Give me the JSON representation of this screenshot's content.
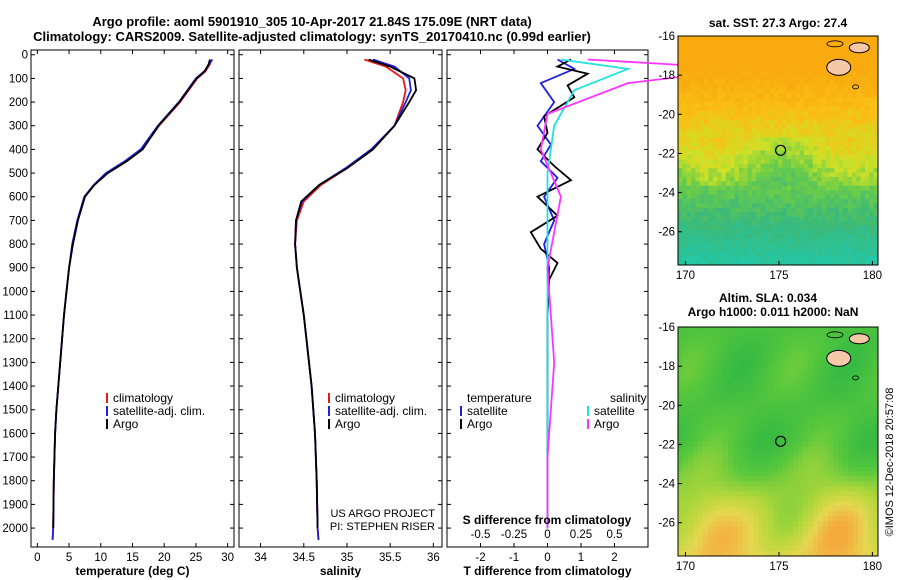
{
  "header": {
    "line1": "Argo profile: aoml 5901910_305 10-Apr-2017 21.84S 175.09E (NRT data)",
    "line2": "Climatology: CARS2009. Satellite-adjusted climatology: synTS_20170410.nc (0.99d earlier)"
  },
  "colors": {
    "climatology": "#e41a1c",
    "satellite_adj": "#1f1fe0",
    "argo": "#000000",
    "sat_salinity": "#22e0e0",
    "argo_salinity": "#ff33ff",
    "land": "#f5c8a8"
  },
  "chart_data": [
    {
      "type": "line",
      "xlabel": "temperature (deg C)",
      "ylabel": "",
      "xlim": [
        -1,
        31
      ],
      "ylim": [
        2080,
        -20
      ],
      "xticks": [
        "0",
        "5",
        "10",
        "15",
        "20",
        "25",
        "30"
      ],
      "yticks": [
        "0",
        "100",
        "200",
        "300",
        "400",
        "500",
        "600",
        "700",
        "800",
        "900",
        "1000",
        "1100",
        "1200",
        "1300",
        "1400",
        "1500",
        "1600",
        "1700",
        "1800",
        "1900",
        "2000"
      ],
      "legend": [
        "climatology",
        "satellite-adj. clim.",
        "Argo"
      ],
      "series": [
        {
          "name": "climatology",
          "x": [
            27.3,
            27.2,
            26.5,
            25.2,
            22.5,
            19.2,
            16.5,
            14.0,
            11.0,
            9.0,
            7.5,
            6.4,
            5.6,
            5.0,
            4.6,
            4.2,
            3.9,
            3.6,
            3.3,
            3.0,
            2.8,
            2.6,
            2.5,
            2.4
          ],
          "y": [
            20,
            40,
            70,
            100,
            200,
            300,
            400,
            450,
            500,
            550,
            600,
            700,
            800,
            900,
            1000,
            1100,
            1200,
            1300,
            1400,
            1500,
            1600,
            1800,
            2000,
            2050
          ]
        },
        {
          "name": "satellite-adj. clim.",
          "x": [
            27.6,
            27.1,
            26.3,
            25.0,
            22.3,
            19.0,
            16.3,
            13.8,
            10.8,
            8.9,
            7.4,
            6.3,
            5.5,
            5.0,
            4.6,
            4.2,
            3.9,
            3.6,
            3.3,
            3.0,
            2.8,
            2.6,
            2.5,
            2.4
          ],
          "y": [
            20,
            40,
            70,
            100,
            200,
            300,
            400,
            450,
            500,
            550,
            600,
            700,
            800,
            900,
            1000,
            1100,
            1200,
            1300,
            1400,
            1500,
            1600,
            1800,
            2000,
            2050
          ]
        },
        {
          "name": "Argo",
          "x": [
            27.2,
            27.0,
            26.4,
            25.1,
            22.4,
            19.1,
            16.6,
            14.1,
            11.1,
            9.0,
            7.5,
            6.4,
            5.6,
            5.0,
            4.6,
            4.2,
            3.9,
            3.6,
            3.3,
            3.0,
            2.8,
            2.6,
            2.5
          ],
          "y": [
            20,
            40,
            70,
            100,
            200,
            300,
            400,
            450,
            500,
            550,
            600,
            700,
            800,
            900,
            1000,
            1100,
            1200,
            1300,
            1400,
            1500,
            1600,
            1800,
            2000
          ]
        }
      ]
    },
    {
      "type": "line",
      "xlabel": "salinity",
      "ylabel": "",
      "xlim": [
        33.75,
        36.1
      ],
      "ylim": [
        2080,
        -20
      ],
      "xticks": [
        "34",
        "34.5",
        "35",
        "35.5",
        "36"
      ],
      "legend": [
        "climatology",
        "satellite-adj. clim.",
        "Argo"
      ],
      "series": [
        {
          "name": "climatology",
          "x": [
            35.2,
            35.45,
            35.65,
            35.68,
            35.65,
            35.55,
            35.3,
            35.0,
            34.7,
            34.5,
            34.42,
            34.4,
            34.42,
            34.46,
            34.5,
            34.53,
            34.56,
            34.59,
            34.61,
            34.63,
            34.65,
            34.66,
            34.67
          ],
          "y": [
            20,
            50,
            100,
            150,
            200,
            300,
            400,
            480,
            550,
            620,
            700,
            800,
            900,
            1000,
            1100,
            1200,
            1300,
            1400,
            1500,
            1600,
            1800,
            2000,
            2050
          ]
        },
        {
          "name": "satellite-adj. clim.",
          "x": [
            35.3,
            35.55,
            35.72,
            35.74,
            35.68,
            35.55,
            35.28,
            34.98,
            34.68,
            34.48,
            34.41,
            34.4,
            34.42,
            34.46,
            34.5,
            34.53,
            34.56,
            34.59,
            34.61,
            34.63,
            34.65,
            34.66,
            34.67
          ],
          "y": [
            20,
            50,
            100,
            150,
            200,
            300,
            400,
            480,
            550,
            620,
            700,
            800,
            900,
            1000,
            1100,
            1200,
            1300,
            1400,
            1500,
            1600,
            1800,
            2000,
            2050
          ]
        },
        {
          "name": "Argo",
          "x": [
            35.25,
            35.5,
            35.78,
            35.8,
            35.72,
            35.55,
            35.3,
            35.0,
            34.68,
            34.47,
            34.41,
            34.4,
            34.42,
            34.46,
            34.5,
            34.53,
            34.56,
            34.59,
            34.61,
            34.63,
            34.65,
            34.66
          ],
          "y": [
            20,
            50,
            100,
            150,
            200,
            300,
            400,
            480,
            550,
            620,
            700,
            800,
            900,
            1000,
            1100,
            1200,
            1300,
            1400,
            1500,
            1600,
            1800,
            2000
          ]
        }
      ]
    },
    {
      "type": "line",
      "xlabel": "T difference from climatology",
      "ylabel": "",
      "xlim": [
        -3,
        3
      ],
      "ylim": [
        2080,
        -20
      ],
      "xticks": [
        "-2",
        "-1",
        "0",
        "1",
        "2"
      ],
      "secondary_xlabel": "S difference from climatology",
      "secondary_xticks": [
        "-0.5",
        "-0.25",
        "0",
        "0.25",
        "0.5"
      ],
      "legend": [
        "temperature",
        "satellite",
        "Argo",
        "salinity",
        "satellite",
        "Argo"
      ],
      "series": [
        {
          "name": "satellite",
          "x": [
            0.3,
            0.8,
            -0.2,
            0.2,
            -0.3,
            0.1,
            -0.2,
            0.3,
            -0.1,
            0.2,
            -0.1,
            0.05,
            0.0,
            0.0,
            0.0,
            0.0
          ],
          "y": [
            20,
            60,
            120,
            200,
            300,
            380,
            450,
            520,
            600,
            700,
            800,
            900,
            1100,
            1400,
            1800,
            2000
          ]
        },
        {
          "name": "Argo",
          "x": [
            0.7,
            0.3,
            1.2,
            0.6,
            0.8,
            -0.1,
            0.0,
            -0.3,
            0.2,
            0.7,
            -0.3,
            0.3,
            -0.5,
            -0.2,
            0.3,
            0.05,
            0.0,
            0.0,
            0.0,
            0.0,
            0.0
          ],
          "y": [
            20,
            50,
            80,
            130,
            180,
            260,
            330,
            400,
            470,
            530,
            600,
            680,
            750,
            820,
            880,
            950,
            1100,
            1300,
            1500,
            1800,
            2000
          ]
        },
        {
          "name": "satellite",
          "x": [
            0.1,
            0.6,
            0.2,
            0.05,
            0.0,
            0.0,
            0.0,
            0.0,
            0.0
          ],
          "y": [
            20,
            60,
            150,
            300,
            500,
            800,
            1200,
            1600,
            2000
          ]
        },
        {
          "name": "Argo",
          "x": [
            0.3,
            1.5,
            0.6,
            0.0,
            -0.05,
            0.1,
            0.0,
            0.05,
            0.0,
            0.0
          ],
          "y": [
            20,
            60,
            120,
            250,
            400,
            600,
            900,
            1300,
            1700,
            2000
          ]
        }
      ]
    },
    {
      "type": "heatmap",
      "title": "sat. SST: 27.3 Argo: 27.4",
      "xticks": [
        "170",
        "175",
        "180"
      ],
      "yticks": [
        "-16",
        "-18",
        "-20",
        "-22",
        "-24",
        "-26"
      ],
      "xlim": [
        169.6,
        180.3
      ],
      "ylim": [
        -27.7,
        -16
      ],
      "argo_position": [
        175.09,
        -21.84
      ]
    },
    {
      "type": "heatmap",
      "title": "Altim. SLA: 0.034",
      "subtitle": "Argo h1000: 0.011 h2000: NaN",
      "xticks": [
        "170",
        "175",
        "180"
      ],
      "yticks": [
        "-16",
        "-18",
        "-20",
        "-22",
        "-24",
        "-26"
      ],
      "xlim": [
        169.6,
        180.3
      ],
      "ylim": [
        -27.7,
        -16
      ],
      "argo_position": [
        175.09,
        -21.84
      ]
    }
  ],
  "annotations": {
    "project": "US ARGO PROJECT",
    "pi": "PI: STEPHEN RISER",
    "stamp": "©IMOS 12-Dec-2018 20:57:08"
  }
}
